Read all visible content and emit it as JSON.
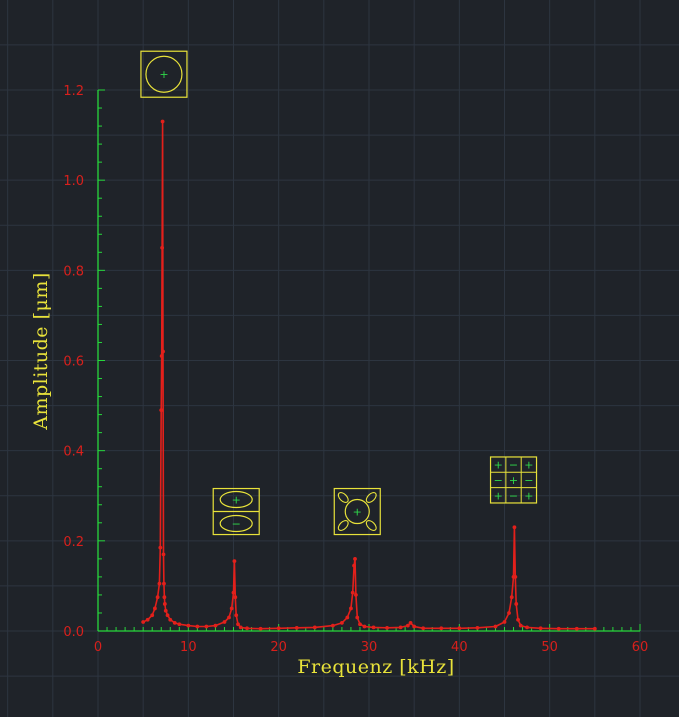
{
  "chart_data": {
    "type": "line",
    "title": "",
    "xlabel": "Frequenz  [kHz]",
    "ylabel": "Amplitude  [μm]",
    "xlim": [
      0,
      60
    ],
    "ylim": [
      0,
      1.2
    ],
    "x_ticks": [
      "0",
      "10",
      "20",
      "30",
      "40",
      "50",
      "60"
    ],
    "y_ticks": [
      "0.0",
      "0.2",
      "0.4",
      "0.6",
      "0.8",
      "1.0",
      "1.2"
    ],
    "grid": true,
    "legend": "none",
    "series": [
      {
        "color": "#e3201b",
        "x": [
          5.0,
          5.5,
          6.0,
          6.3,
          6.6,
          6.8,
          6.9,
          7.0,
          7.05,
          7.1,
          7.15,
          7.2,
          7.25,
          7.3,
          7.35,
          7.4,
          7.5,
          7.7,
          8.0,
          8.5,
          9.0,
          10.0,
          11.0,
          12.0,
          13.0,
          14.0,
          14.5,
          14.8,
          15.0,
          15.1,
          15.2,
          15.3,
          15.5,
          15.8,
          16.5,
          18.0,
          20.0,
          22.0,
          24.0,
          26.0,
          27.0,
          27.6,
          28.0,
          28.2,
          28.35,
          28.45,
          28.55,
          28.7,
          29.0,
          29.5,
          30.5,
          32.0,
          33.5,
          34.3,
          34.6,
          35.0,
          36.0,
          38.0,
          40.0,
          42.0,
          44.0,
          45.0,
          45.5,
          45.8,
          46.0,
          46.1,
          46.2,
          46.3,
          46.5,
          46.8,
          47.5,
          49.0,
          51.0,
          53.0,
          55.0
        ],
        "y": [
          0.02,
          0.025,
          0.035,
          0.05,
          0.075,
          0.105,
          0.185,
          0.49,
          0.61,
          0.85,
          1.13,
          0.62,
          0.17,
          0.105,
          0.075,
          0.06,
          0.045,
          0.035,
          0.025,
          0.018,
          0.015,
          0.012,
          0.01,
          0.01,
          0.012,
          0.02,
          0.03,
          0.05,
          0.085,
          0.155,
          0.075,
          0.035,
          0.015,
          0.008,
          0.006,
          0.005,
          0.006,
          0.007,
          0.008,
          0.012,
          0.018,
          0.03,
          0.05,
          0.085,
          0.145,
          0.16,
          0.08,
          0.03,
          0.015,
          0.01,
          0.008,
          0.007,
          0.008,
          0.012,
          0.018,
          0.01,
          0.006,
          0.006,
          0.006,
          0.007,
          0.01,
          0.02,
          0.04,
          0.075,
          0.12,
          0.23,
          0.12,
          0.06,
          0.025,
          0.012,
          0.008,
          0.006,
          0.005,
          0.005,
          0.005
        ]
      }
    ],
    "mode_icons": [
      {
        "name": "mode-1-icon",
        "x": 7.3,
        "level": 1.235,
        "signs": [
          "+"
        ]
      },
      {
        "name": "mode-2-icon",
        "x": 15.3,
        "level": 0.265,
        "signs": [
          "+",
          "−"
        ]
      },
      {
        "name": "mode-3-icon",
        "x": 28.7,
        "level": 0.265,
        "signs": [
          "+"
        ]
      },
      {
        "name": "mode-4-icon",
        "x": 46.0,
        "level": 0.335,
        "signs": [
          "+",
          "−",
          "+",
          "−",
          "+",
          "−",
          "+",
          "−",
          "+"
        ]
      }
    ]
  },
  "colors": {
    "background": "#1f2329",
    "grid": "#2d3540",
    "axis": "#27d83c",
    "line": "#e3201b",
    "tick_text": "#d8201c",
    "label_text": "#e8e23a",
    "icon_stroke": "#e8e23a",
    "icon_sign": "#2fd84a"
  }
}
